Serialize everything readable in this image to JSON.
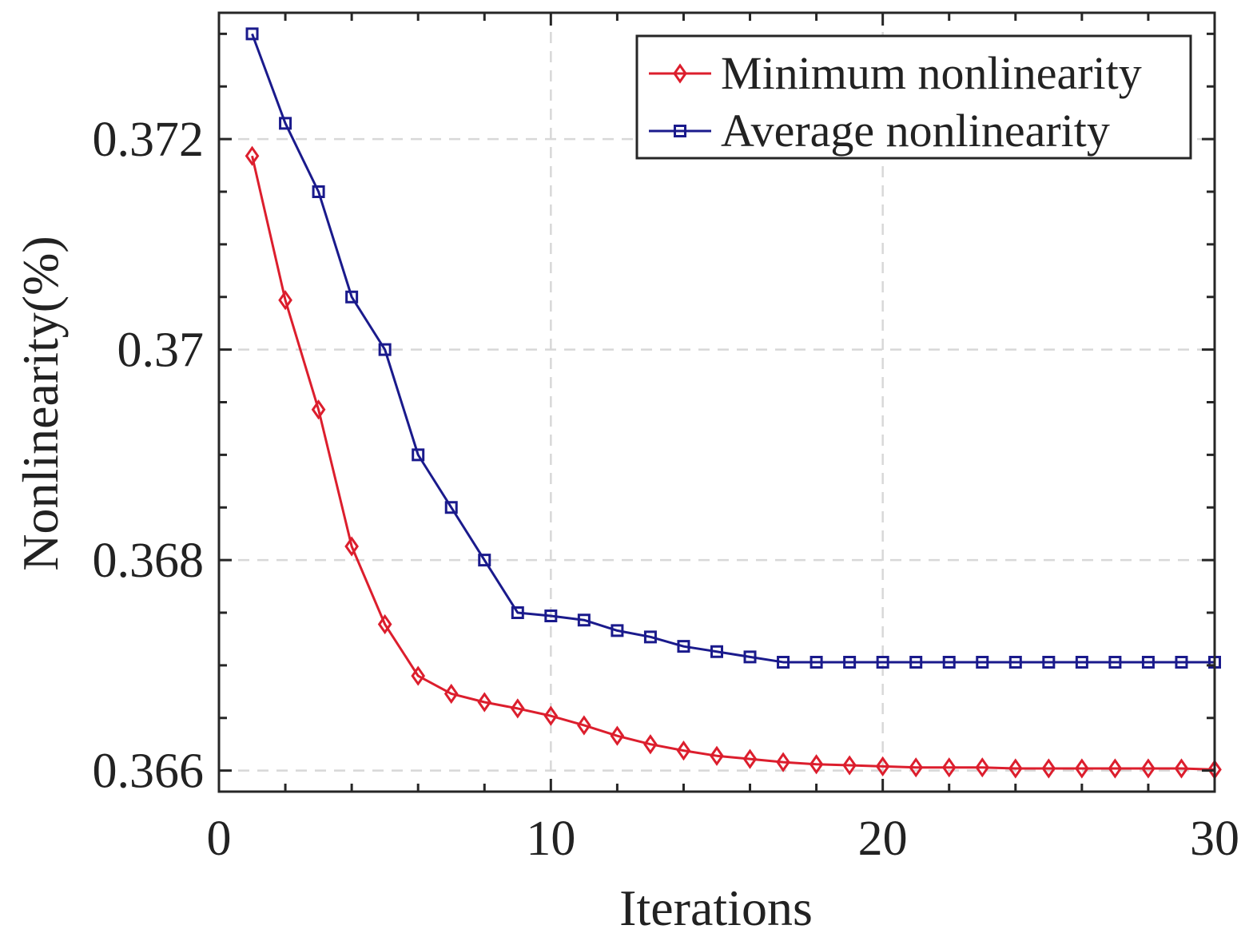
{
  "chart_data": {
    "type": "line",
    "title": "",
    "xlabel": "Iterations",
    "ylabel": "Nonlinearity(%)",
    "xlim": [
      0,
      30
    ],
    "ylim": [
      0.3658,
      0.3732
    ],
    "xticks": [
      0,
      10,
      20,
      30
    ],
    "xtick_labels": [
      "0",
      "10",
      "20",
      "30"
    ],
    "yticks": [
      0.366,
      0.368,
      0.37,
      0.372
    ],
    "ytick_labels": [
      "0.366",
      "0.368",
      "0.37",
      "0.372"
    ],
    "grid": true,
    "legend_position": "top-right",
    "x": [
      1,
      2,
      3,
      4,
      5,
      6,
      7,
      8,
      9,
      10,
      11,
      12,
      13,
      14,
      15,
      16,
      17,
      18,
      19,
      20,
      21,
      22,
      23,
      24,
      25,
      26,
      27,
      28,
      29,
      30
    ],
    "series": [
      {
        "name": "Minimum nonlinearity",
        "color": "#dc1e2d",
        "marker": "diamond",
        "values": [
          0.37184,
          0.37047,
          0.36943,
          0.36813,
          0.36739,
          0.3669,
          0.36673,
          0.36665,
          0.36659,
          0.36652,
          0.36643,
          0.36633,
          0.36625,
          0.36619,
          0.36614,
          0.36611,
          0.36608,
          0.36606,
          0.36605,
          0.36604,
          0.36603,
          0.36603,
          0.36603,
          0.36602,
          0.36602,
          0.36602,
          0.36602,
          0.36602,
          0.36602,
          0.36601
        ]
      },
      {
        "name": "Average nonlinearity",
        "color": "#1a1a8c",
        "marker": "square",
        "values": [
          0.373,
          0.37215,
          0.3715,
          0.3705,
          0.37,
          0.369,
          0.3685,
          0.368,
          0.3675,
          0.36747,
          0.36743,
          0.36733,
          0.36727,
          0.36718,
          0.36713,
          0.36708,
          0.36703,
          0.36703,
          0.36703,
          0.36703,
          0.36703,
          0.36703,
          0.36703,
          0.36703,
          0.36703,
          0.36703,
          0.36703,
          0.36703,
          0.36703,
          0.36703
        ]
      }
    ]
  }
}
